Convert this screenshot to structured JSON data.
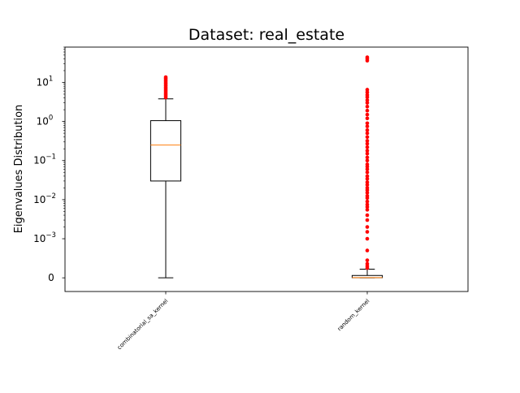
{
  "chart_data": {
    "type": "box",
    "title": "Dataset: real_estate",
    "xlabel": "",
    "ylabel": "Eigenvalues Distribution",
    "yscale": "symlog",
    "ylim": [
      -0.00035,
      80
    ],
    "yticks": [
      {
        "value": 0,
        "label": "0"
      },
      {
        "value": 0.001,
        "label": "10",
        "exp": "−3"
      },
      {
        "value": 0.01,
        "label": "10",
        "exp": "−2"
      },
      {
        "value": 0.1,
        "label": "10",
        "exp": "−1"
      },
      {
        "value": 1,
        "label": "10",
        "exp": "0"
      },
      {
        "value": 10,
        "label": "10",
        "exp": "1"
      }
    ],
    "categories": [
      "combinatorial_sa_kernel",
      "random_kernel"
    ],
    "boxes": [
      {
        "name": "combinatorial_sa_kernel",
        "whisker_low": 0,
        "q1": 0.03,
        "median": 0.25,
        "q3": 1.05,
        "whisker_high": 3.8,
        "outliers": [
          4.1,
          4.5,
          4.9,
          5.3,
          5.8,
          6.3,
          6.9,
          7.5,
          8.2,
          9.0,
          9.8,
          10.7,
          11.6,
          12.6,
          13.6
        ]
      },
      {
        "name": "random_kernel",
        "whisker_low": 0,
        "q1": 2.5e-06,
        "median": 4.5e-06,
        "q3": 6e-05,
        "whisker_high": 0.00022,
        "outliers": [
          0.00025,
          0.0003,
          0.00036,
          0.00045,
          0.0007,
          0.001,
          0.0015,
          0.002,
          0.003,
          0.004,
          0.0055,
          0.0065,
          0.0075,
          0.009,
          0.011,
          0.0125,
          0.015,
          0.0175,
          0.02,
          0.024,
          0.028,
          0.034,
          0.04,
          0.05,
          0.06,
          0.07,
          0.08,
          0.1,
          0.12,
          0.15,
          0.18,
          0.22,
          0.27,
          0.32,
          0.4,
          0.5,
          0.6,
          0.75,
          0.9,
          1.2,
          1.5,
          1.9,
          2.4,
          3.0,
          3.5,
          4.2,
          4.8,
          5.6,
          6.5,
          36,
          40,
          44
        ]
      }
    ],
    "colors": {
      "median": "#ff7f0e",
      "outlier": "#ff0000",
      "box": "#000000"
    }
  }
}
